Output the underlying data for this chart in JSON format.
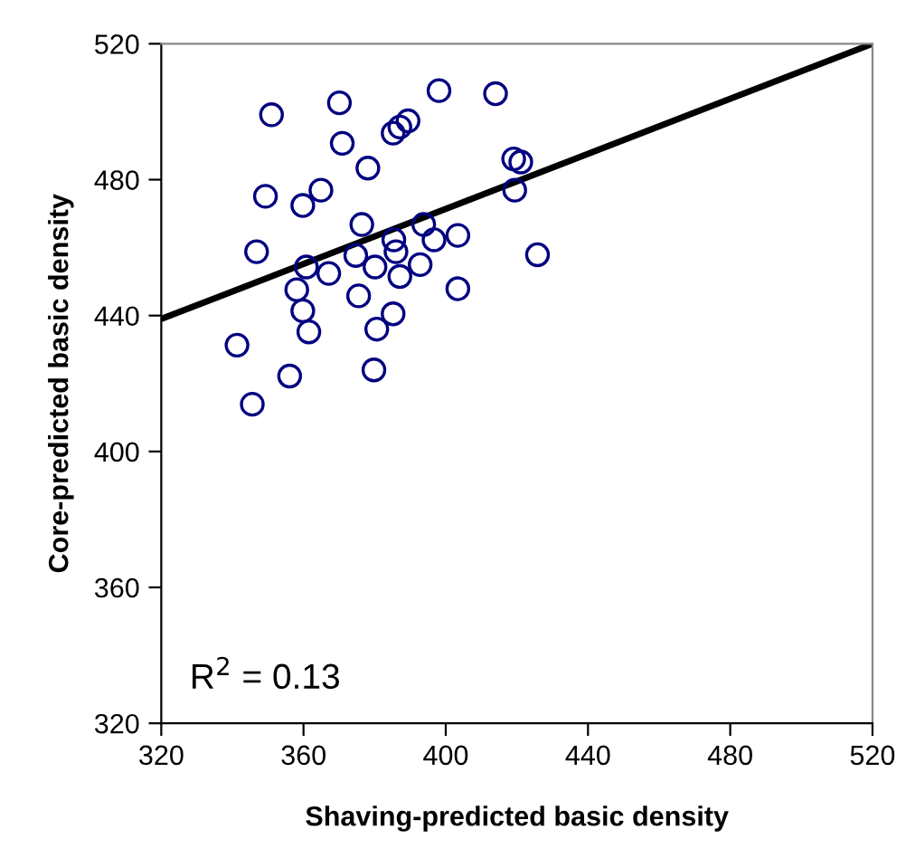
{
  "chart_data": {
    "type": "scatter",
    "xlabel": "Shaving-predicted basic density",
    "ylabel": "Core-predicted basic density",
    "annotations": [
      "R$^{2}$ = 0.13"
    ],
    "xlim": [
      320,
      520
    ],
    "ylim": [
      320,
      520
    ],
    "xticks": [
      320,
      360,
      400,
      440,
      480,
      520
    ],
    "yticks": [
      320,
      360,
      400,
      440,
      480,
      520
    ],
    "grid": false,
    "marker": "circle",
    "series": [
      {
        "color": "#000080",
        "x": [
          351.0,
          370.1,
          398.1,
          414.0,
          370.9,
          385.2,
          387.1,
          389.4,
          378.1,
          419.1,
          421.1,
          419.4,
          349.3,
          359.8,
          364.9,
          376.4,
          393.8,
          385.4,
          396.7,
          403.4,
          346.8,
          386.0,
          374.7,
          360.8,
          380.1,
          392.8,
          367.1,
          387.1,
          425.8,
          358.1,
          403.4,
          375.5,
          359.8,
          385.2,
          361.5,
          380.6,
          341.3,
          356.1,
          379.8,
          345.6
        ],
        "values": [
          499.1,
          502.6,
          506.2,
          505.3,
          490.7,
          493.7,
          495.5,
          497.3,
          483.4,
          486.1,
          485.2,
          476.9,
          475.1,
          472.4,
          476.9,
          466.8,
          466.8,
          462.3,
          462.3,
          463.6,
          458.8,
          458.8,
          457.7,
          454.3,
          454.3,
          455.0,
          452.4,
          451.5,
          457.9,
          447.6,
          447.9,
          445.8,
          441.4,
          440.5,
          435.2,
          436.0,
          431.3,
          422.2,
          424.0,
          413.9
        ]
      },
      {
        "type": "line",
        "color": "#000000",
        "x": [
          320,
          520
        ],
        "values": [
          439,
          520
        ],
        "marker": "none",
        "line_style": "solid"
      }
    ]
  }
}
